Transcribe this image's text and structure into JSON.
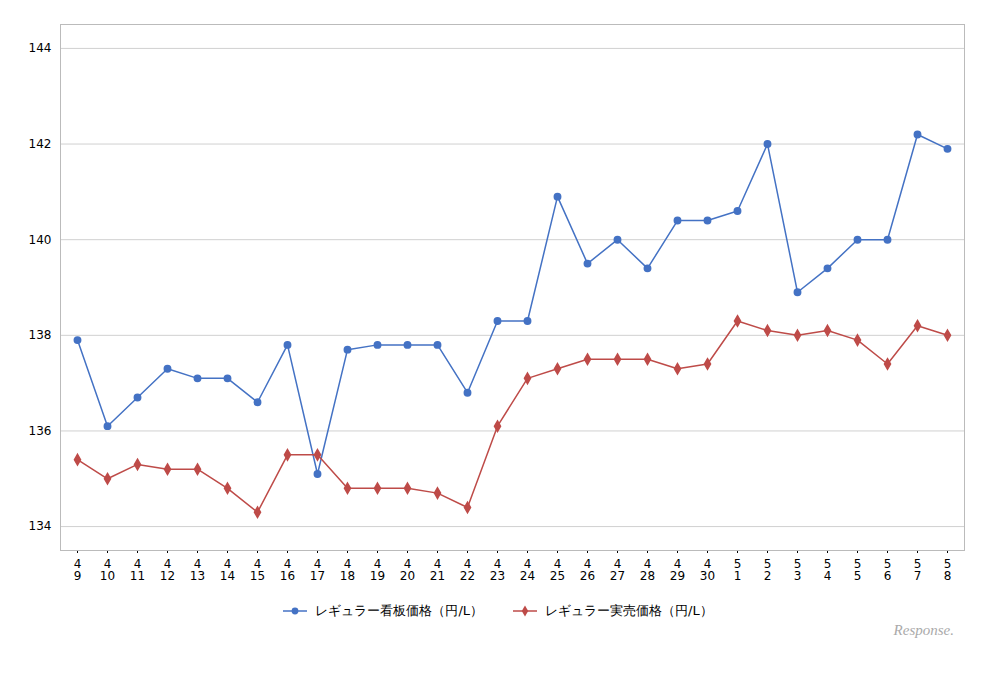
{
  "chart_data": {
    "type": "line",
    "categories": [
      "4\n9",
      "4\n10",
      "4\n11",
      "4\n12",
      "4\n13",
      "4\n14",
      "4\n15",
      "4\n16",
      "4\n17",
      "4\n18",
      "4\n19",
      "4\n20",
      "4\n21",
      "4\n22",
      "4\n23",
      "4\n24",
      "4\n25",
      "4\n26",
      "4\n27",
      "4\n28",
      "4\n29",
      "4\n30",
      "5\n1",
      "5\n2",
      "5\n3",
      "5\n4",
      "5\n5",
      "5\n6",
      "5\n7",
      "5\n8"
    ],
    "series": [
      {
        "name": "レギュラー看板価格（円/L）",
        "color": "#4472C4",
        "marker": "circle",
        "values": [
          137.9,
          136.1,
          136.7,
          137.3,
          137.1,
          137.1,
          136.6,
          137.8,
          135.1,
          137.7,
          137.8,
          137.8,
          137.8,
          136.8,
          138.3,
          138.3,
          140.9,
          139.5,
          140.0,
          139.4,
          140.4,
          140.4,
          140.6,
          142.0,
          138.9,
          139.4,
          140.0,
          140.0,
          142.2,
          141.9
        ]
      },
      {
        "name": "レギュラー実売価格（円/L）",
        "color": "#BE4B48",
        "marker": "diamond",
        "values": [
          135.4,
          135.0,
          135.3,
          135.2,
          135.2,
          134.8,
          134.3,
          135.5,
          135.5,
          134.8,
          134.8,
          134.8,
          134.7,
          134.4,
          136.1,
          137.1,
          137.3,
          137.5,
          137.5,
          137.5,
          137.3,
          137.4,
          138.3,
          138.1,
          138.0,
          138.1,
          137.9,
          137.4,
          138.2,
          138.0
        ]
      }
    ],
    "ylim": [
      133.5,
      144.5
    ],
    "yticks": [
      134,
      136,
      138,
      140,
      142,
      144
    ],
    "grid": true,
    "legend": "bottom",
    "annotations": [
      "Response."
    ]
  }
}
